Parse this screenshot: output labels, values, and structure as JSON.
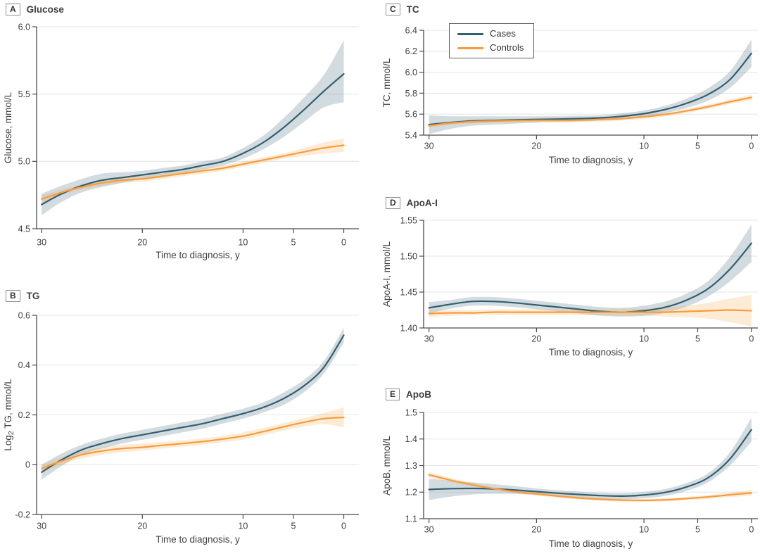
{
  "figure": {
    "xlabel": "Time to diagnosis, y",
    "x_ticks": [
      30,
      20,
      10,
      5,
      0
    ],
    "x_axis_note": "reversed axis, 30 years at left to 0 years at right",
    "legend": {
      "location": "top-left of panel C",
      "entries": [
        "Cases",
        "Controls"
      ]
    },
    "style": {
      "cases_color": "#33606f",
      "controls_color": "#f89c3c",
      "cases_band_color": "#7f98a5",
      "cases_band_opacity": 0.35,
      "controls_band_color": "#f8a33f",
      "controls_band_opacity": 0.22,
      "grid_color": "#e5e6e7",
      "axis_color": "#4a4a4a",
      "text_color": "#3e3e3e"
    }
  },
  "chart_data": [
    {
      "panel_label": "A",
      "title": "Glucose",
      "type": "line",
      "ylabel": "Glucose, mmol/L",
      "ylim": [
        4.5,
        6.0
      ],
      "yticks": [
        {
          "v": 4.5,
          "label": "4.5"
        },
        {
          "v": 5.0,
          "label": "5.0"
        },
        {
          "v": 5.5,
          "label": "5.5"
        },
        {
          "v": 6.0,
          "label": "6.0"
        }
      ],
      "grid_y": [
        5.0,
        5.5,
        6.0
      ],
      "x": [
        30,
        28,
        26,
        24,
        22,
        20,
        18,
        16,
        14,
        12,
        10,
        8,
        6,
        4,
        2,
        0
      ],
      "series": [
        {
          "name": "Cases",
          "values": [
            4.68,
            4.76,
            4.82,
            4.86,
            4.88,
            4.9,
            4.92,
            4.94,
            4.97,
            5.0,
            5.06,
            5.14,
            5.25,
            5.38,
            5.52,
            5.65
          ],
          "ci_lower": [
            4.6,
            4.7,
            4.77,
            4.81,
            4.84,
            4.87,
            4.89,
            4.91,
            4.94,
            4.97,
            5.02,
            5.09,
            5.18,
            5.29,
            5.4,
            5.44
          ],
          "ci_upper": [
            4.76,
            4.82,
            4.87,
            4.91,
            4.92,
            4.93,
            4.95,
            4.97,
            5.0,
            5.03,
            5.1,
            5.19,
            5.32,
            5.47,
            5.64,
            5.9
          ]
        },
        {
          "name": "Controls",
          "values": [
            4.72,
            4.77,
            4.81,
            4.84,
            4.86,
            4.87,
            4.89,
            4.91,
            4.93,
            4.95,
            4.98,
            5.01,
            5.04,
            5.07,
            5.1,
            5.12
          ],
          "ci_lower": [
            4.69,
            4.75,
            4.79,
            4.82,
            4.84,
            4.85,
            4.87,
            4.89,
            4.91,
            4.93,
            4.96,
            4.99,
            5.02,
            5.04,
            5.06,
            5.07
          ],
          "ci_upper": [
            4.75,
            4.79,
            4.83,
            4.86,
            4.88,
            4.89,
            4.91,
            4.93,
            4.95,
            4.97,
            5.0,
            5.03,
            5.06,
            5.1,
            5.14,
            5.17
          ]
        }
      ]
    },
    {
      "panel_label": "B",
      "title": "TG",
      "type": "line",
      "ylabel": "Log2 TG, mmol/L",
      "ylabel_parts": [
        {
          "t": "Log"
        },
        {
          "t": "2",
          "sub": true
        },
        {
          "t": " TG, mmol/L"
        }
      ],
      "ylim": [
        -0.2,
        0.6
      ],
      "yticks": [
        {
          "v": -0.2,
          "label": "-0.2"
        },
        {
          "v": 0,
          "label": "0"
        },
        {
          "v": 0.2,
          "label": "0.2"
        },
        {
          "v": 0.4,
          "label": "0.4"
        },
        {
          "v": 0.6,
          "label": "0.6"
        }
      ],
      "grid_y": [
        0,
        0.2,
        0.4,
        0.6
      ],
      "x": [
        30,
        28,
        26,
        24,
        22,
        20,
        18,
        16,
        14,
        12,
        10,
        8,
        6,
        4,
        2,
        0
      ],
      "series": [
        {
          "name": "Cases",
          "values": [
            -0.03,
            0.02,
            0.06,
            0.085,
            0.105,
            0.12,
            0.135,
            0.15,
            0.165,
            0.185,
            0.205,
            0.23,
            0.265,
            0.315,
            0.39,
            0.52
          ],
          "ci_lower": [
            -0.06,
            -0.005,
            0.04,
            0.065,
            0.085,
            0.1,
            0.115,
            0.13,
            0.145,
            0.165,
            0.185,
            0.21,
            0.24,
            0.29,
            0.365,
            0.49
          ],
          "ci_upper": [
            0.0,
            0.045,
            0.08,
            0.105,
            0.125,
            0.14,
            0.155,
            0.17,
            0.185,
            0.205,
            0.225,
            0.25,
            0.29,
            0.34,
            0.415,
            0.55
          ]
        },
        {
          "name": "Controls",
          "values": [
            -0.015,
            0.015,
            0.04,
            0.055,
            0.065,
            0.07,
            0.078,
            0.085,
            0.093,
            0.103,
            0.115,
            0.133,
            0.152,
            0.17,
            0.185,
            0.19
          ],
          "ci_lower": [
            -0.03,
            0.0,
            0.025,
            0.04,
            0.05,
            0.057,
            0.065,
            0.072,
            0.08,
            0.09,
            0.1,
            0.118,
            0.137,
            0.153,
            0.163,
            0.15
          ],
          "ci_upper": [
            0.0,
            0.03,
            0.055,
            0.07,
            0.08,
            0.085,
            0.092,
            0.098,
            0.106,
            0.116,
            0.13,
            0.148,
            0.167,
            0.187,
            0.207,
            0.23
          ]
        }
      ]
    },
    {
      "panel_label": "C",
      "title": "TC",
      "type": "line",
      "ylabel": "TC, mmol/L",
      "ylim": [
        5.4,
        6.4
      ],
      "yticks": [
        {
          "v": 5.4,
          "label": "5.4"
        },
        {
          "v": 5.6,
          "label": "5.6"
        },
        {
          "v": 5.8,
          "label": "5.8"
        },
        {
          "v": 6.0,
          "label": "6.0"
        },
        {
          "v": 6.2,
          "label": "6.2"
        },
        {
          "v": 6.4,
          "label": "6.4"
        }
      ],
      "grid_y": [
        5.6,
        5.8,
        6.0,
        6.2,
        6.4
      ],
      "x": [
        30,
        28,
        26,
        24,
        22,
        20,
        18,
        16,
        14,
        12,
        10,
        8,
        6,
        4,
        2,
        0
      ],
      "series": [
        {
          "name": "Cases",
          "values": [
            5.5,
            5.52,
            5.535,
            5.54,
            5.545,
            5.55,
            5.553,
            5.558,
            5.565,
            5.58,
            5.605,
            5.645,
            5.705,
            5.79,
            5.93,
            6.18
          ],
          "ci_lower": [
            5.41,
            5.46,
            5.49,
            5.5,
            5.51,
            5.52,
            5.525,
            5.53,
            5.54,
            5.55,
            5.575,
            5.61,
            5.66,
            5.73,
            5.85,
            6.05
          ],
          "ci_upper": [
            5.59,
            5.58,
            5.58,
            5.58,
            5.58,
            5.58,
            5.581,
            5.586,
            5.59,
            5.61,
            5.635,
            5.68,
            5.75,
            5.85,
            6.01,
            6.31
          ]
        },
        {
          "name": "Controls",
          "values": [
            5.49,
            5.515,
            5.528,
            5.535,
            5.539,
            5.541,
            5.541,
            5.543,
            5.549,
            5.558,
            5.575,
            5.598,
            5.632,
            5.672,
            5.718,
            5.76
          ],
          "ci_lower": [
            5.472,
            5.497,
            5.51,
            5.517,
            5.521,
            5.523,
            5.523,
            5.525,
            5.531,
            5.54,
            5.557,
            5.58,
            5.613,
            5.652,
            5.696,
            5.735
          ],
          "ci_upper": [
            5.508,
            5.533,
            5.546,
            5.553,
            5.557,
            5.559,
            5.559,
            5.561,
            5.567,
            5.576,
            5.593,
            5.616,
            5.651,
            5.692,
            5.74,
            5.785
          ]
        }
      ]
    },
    {
      "panel_label": "D",
      "title": "ApoA-I",
      "type": "line",
      "ylabel": "ApoA-I, mmol/L",
      "ylim": [
        1.4,
        1.55
      ],
      "yticks": [
        {
          "v": 1.4,
          "label": "1.40"
        },
        {
          "v": 1.45,
          "label": "1.45"
        },
        {
          "v": 1.5,
          "label": "1.50"
        },
        {
          "v": 1.55,
          "label": "1.55"
        }
      ],
      "grid_y": [
        1.45,
        1.5,
        1.55
      ],
      "x": [
        30,
        28,
        26,
        24,
        22,
        20,
        18,
        16,
        14,
        12,
        10,
        8,
        6,
        4,
        2,
        0
      ],
      "series": [
        {
          "name": "Cases",
          "values": [
            1.428,
            1.433,
            1.437,
            1.437,
            1.435,
            1.432,
            1.429,
            1.426,
            1.423,
            1.422,
            1.424,
            1.429,
            1.439,
            1.455,
            1.482,
            1.518
          ],
          "ci_lower": [
            1.42,
            1.427,
            1.431,
            1.431,
            1.429,
            1.426,
            1.423,
            1.42,
            1.417,
            1.416,
            1.417,
            1.421,
            1.43,
            1.444,
            1.465,
            1.492
          ],
          "ci_upper": [
            1.436,
            1.439,
            1.443,
            1.443,
            1.441,
            1.438,
            1.435,
            1.432,
            1.429,
            1.428,
            1.431,
            1.437,
            1.448,
            1.466,
            1.499,
            1.544
          ]
        },
        {
          "name": "Controls",
          "values": [
            1.42,
            1.421,
            1.421,
            1.422,
            1.422,
            1.422,
            1.422,
            1.422,
            1.422,
            1.422,
            1.422,
            1.422,
            1.423,
            1.424,
            1.425,
            1.424
          ],
          "ci_lower": [
            1.415,
            1.417,
            1.418,
            1.418,
            1.418,
            1.418,
            1.418,
            1.418,
            1.418,
            1.417,
            1.417,
            1.416,
            1.415,
            1.413,
            1.408,
            1.402
          ],
          "ci_upper": [
            1.425,
            1.425,
            1.425,
            1.426,
            1.426,
            1.426,
            1.426,
            1.426,
            1.426,
            1.427,
            1.427,
            1.429,
            1.431,
            1.435,
            1.441,
            1.446
          ]
        }
      ]
    },
    {
      "panel_label": "E",
      "title": "ApoB",
      "type": "line",
      "ylabel": "ApoB, mmol/L",
      "ylim": [
        1.1,
        1.5
      ],
      "yticks": [
        {
          "v": 1.1,
          "label": "1.1"
        },
        {
          "v": 1.2,
          "label": "1.2"
        },
        {
          "v": 1.3,
          "label": "1.3"
        },
        {
          "v": 1.4,
          "label": "1.4"
        },
        {
          "v": 1.5,
          "label": "1.5"
        }
      ],
      "grid_y": [
        1.2,
        1.3,
        1.4,
        1.5
      ],
      "x": [
        30,
        28,
        26,
        24,
        22,
        20,
        18,
        16,
        14,
        12,
        10,
        8,
        6,
        4,
        2,
        0
      ],
      "series": [
        {
          "name": "Cases",
          "values": [
            1.21,
            1.213,
            1.214,
            1.212,
            1.208,
            1.202,
            1.196,
            1.191,
            1.187,
            1.185,
            1.189,
            1.199,
            1.22,
            1.255,
            1.325,
            1.435
          ],
          "ci_lower": [
            1.17,
            1.183,
            1.191,
            1.194,
            1.193,
            1.19,
            1.185,
            1.18,
            1.176,
            1.174,
            1.177,
            1.186,
            1.205,
            1.238,
            1.3,
            1.39
          ],
          "ci_upper": [
            1.25,
            1.243,
            1.237,
            1.23,
            1.223,
            1.214,
            1.207,
            1.202,
            1.198,
            1.196,
            1.201,
            1.212,
            1.235,
            1.272,
            1.35,
            1.48
          ]
        },
        {
          "name": "Controls",
          "values": [
            1.265,
            1.245,
            1.228,
            1.213,
            1.202,
            1.193,
            1.185,
            1.178,
            1.173,
            1.17,
            1.169,
            1.171,
            1.176,
            1.182,
            1.19,
            1.197
          ],
          "ci_lower": [
            1.255,
            1.237,
            1.221,
            1.207,
            1.196,
            1.187,
            1.179,
            1.172,
            1.167,
            1.164,
            1.163,
            1.165,
            1.17,
            1.175,
            1.181,
            1.186
          ],
          "ci_upper": [
            1.275,
            1.253,
            1.235,
            1.219,
            1.208,
            1.199,
            1.191,
            1.184,
            1.179,
            1.176,
            1.175,
            1.177,
            1.182,
            1.189,
            1.199,
            1.208
          ]
        }
      ]
    }
  ]
}
